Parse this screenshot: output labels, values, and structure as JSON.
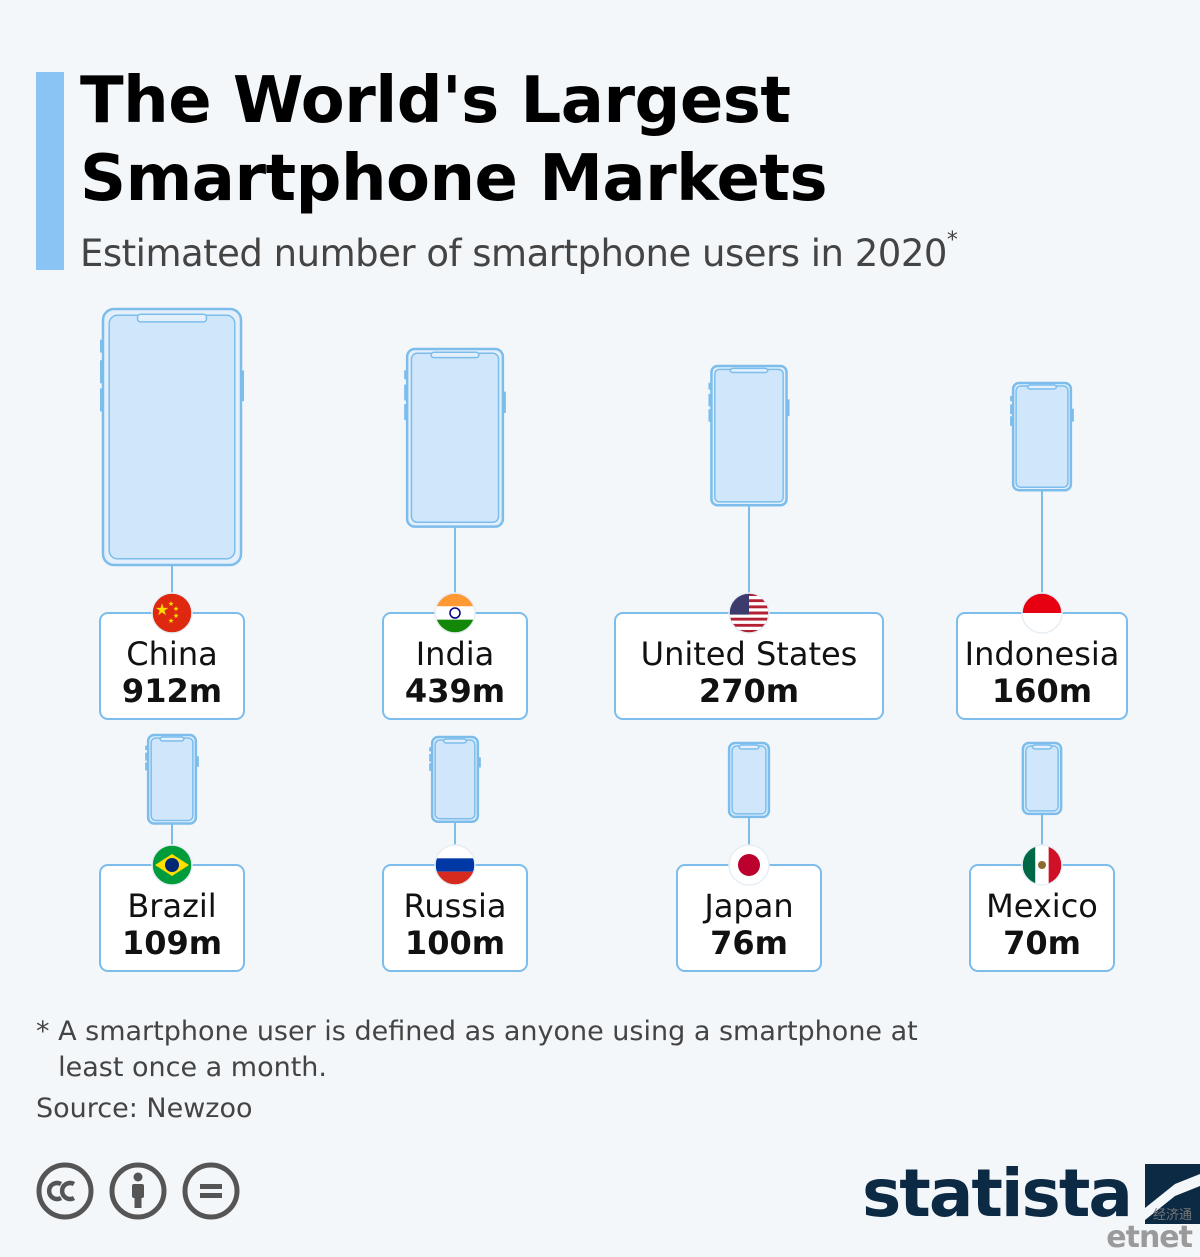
{
  "header": {
    "title_line1": "The World's Largest",
    "title_line2": "Smartphone Markets",
    "subtitle": "Estimated number of smartphone users in 2020",
    "subtitle_mark": "*"
  },
  "chart_data": {
    "type": "pictogram",
    "unit": "m",
    "categories": [
      "China",
      "India",
      "United States",
      "Indonesia",
      "Brazil",
      "Russia",
      "Japan",
      "Mexico"
    ],
    "values": [
      912,
      439,
      270,
      160,
      109,
      100,
      76,
      70
    ],
    "value_labels": [
      "912m",
      "439m",
      "270m",
      "160m",
      "109m",
      "100m",
      "76m",
      "70m"
    ],
    "flags": [
      "china-flag",
      "india-flag",
      "usa-flag",
      "indonesia-flag",
      "brazil-flag",
      "russia-flag",
      "japan-flag",
      "mexico-flag"
    ]
  },
  "footnote": {
    "mark": "*",
    "text": "A smartphone user is defined as anyone using a smartphone at least once a month."
  },
  "source": "Source: Newzoo",
  "license_icons": [
    "cc-icon",
    "attribution-icon",
    "no-derivatives-icon"
  ],
  "brand": {
    "name": "statista",
    "logo": "statista-logo-icon"
  },
  "watermark": {
    "cn": "经济通",
    "en": "etnet"
  },
  "colors": {
    "accent": "#89c4f4",
    "phone_fill": "#cfe6fb",
    "phone_stroke": "#7cbdec",
    "brand": "#0d2a44"
  }
}
